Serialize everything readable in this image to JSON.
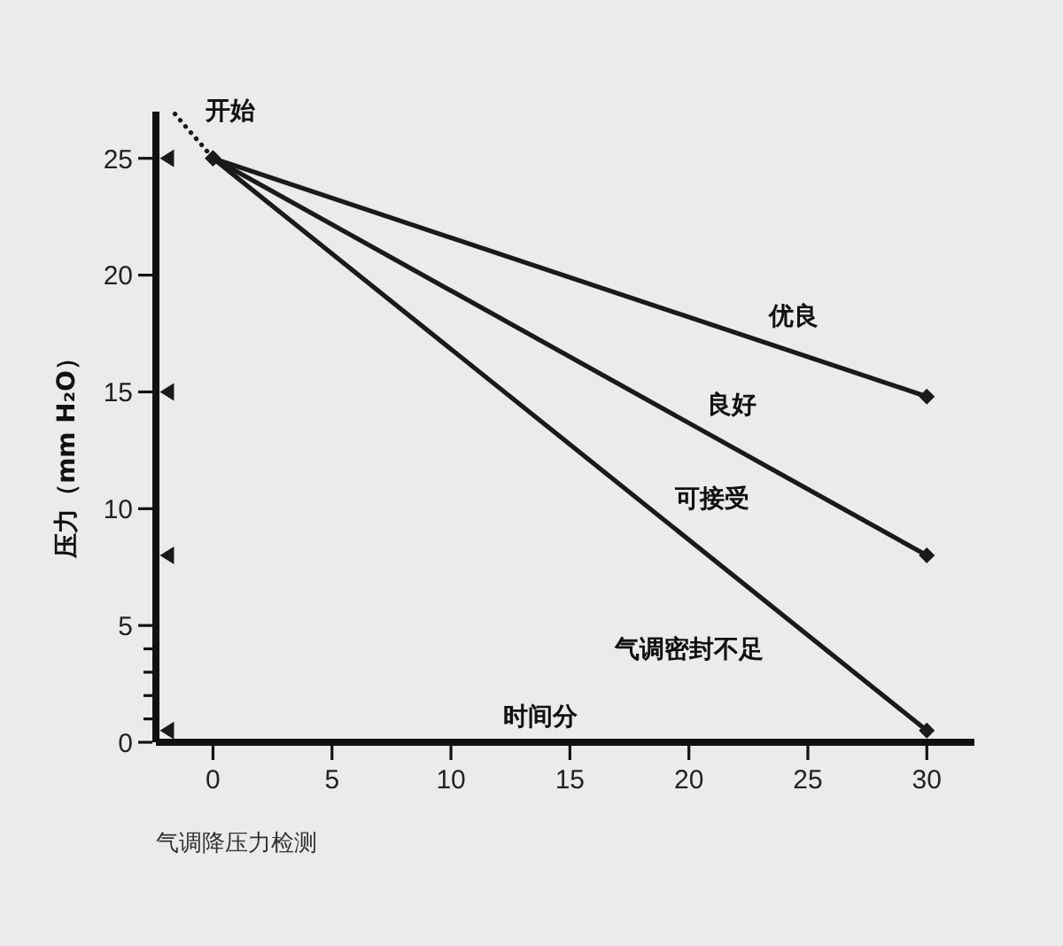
{
  "chart_data": {
    "type": "line",
    "xlabel": "时间分",
    "ylabel": "压力（mm H₂O）",
    "xlim": [
      -2.4,
      32
    ],
    "xticks": [
      0,
      5,
      10,
      15,
      20,
      25,
      30
    ],
    "ylim": [
      0,
      27
    ],
    "yticks": [
      0,
      {
        "value": 1,
        "label": null
      },
      {
        "value": 2,
        "label": null
      },
      {
        "value": 3,
        "label": null
      },
      {
        "value": 4,
        "label": null
      },
      5,
      10,
      15,
      20,
      25
    ],
    "grid": false,
    "legend": false,
    "series": [
      {
        "color": "#1a1a1a",
        "x": [
          0,
          30
        ],
        "values": [
          25,
          14.8
        ],
        "marker": "diamond",
        "line_style": "solid"
      },
      {
        "color": "#1a1a1a",
        "x": [
          0,
          30
        ],
        "values": [
          25,
          8
        ],
        "marker": "diamond",
        "line_style": "solid"
      },
      {
        "color": "#1a1a1a",
        "x": [
          0,
          30
        ],
        "values": [
          25,
          0.5
        ],
        "marker": "diamond",
        "line_style": "solid"
      },
      {
        "color": "#1a1a1a",
        "x": [
          -1.6,
          -1.1,
          -0.5,
          0
        ],
        "values": [
          26.9,
          26.3,
          25.6,
          25
        ],
        "marker": "none",
        "line_style": "dotted"
      },
      {
        "type": "scatter",
        "color": "#1a1a1a",
        "x": [
          -1.9,
          -1.9,
          -1.9,
          -1.9
        ],
        "values": [
          25,
          15,
          8,
          0.5
        ],
        "marker": "triangle"
      }
    ],
    "annotations": [
      {
        "text": "开始",
        "x": 0,
        "y": 25
      },
      "优良",
      "良好",
      "可接受",
      "气调密封不足",
      "气调降压力检测"
    ]
  }
}
